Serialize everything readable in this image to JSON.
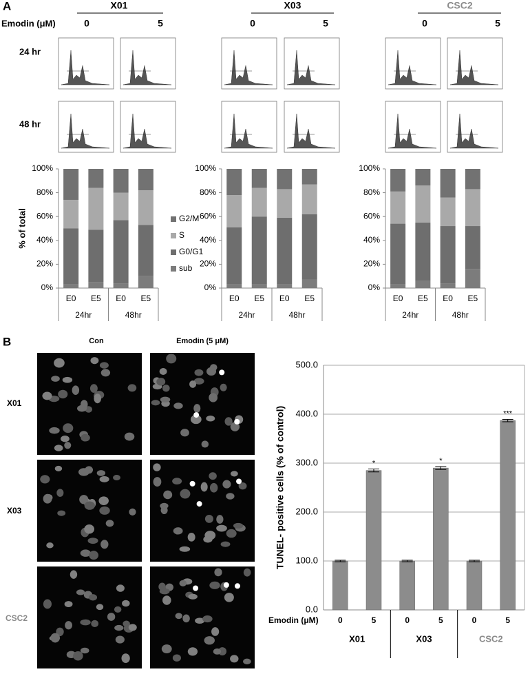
{
  "figure": {
    "panel_a": "A",
    "treatment_label": "Emodin (μM)",
    "cell_lines": [
      "X01",
      "X03",
      "CSC2"
    ],
    "doses": [
      "0",
      "5"
    ],
    "times": [
      "24 hr",
      "48 hr"
    ],
    "panel_b": "B",
    "image_columns": [
      "Con",
      "Emodin (5 μM)"
    ]
  },
  "chart_data": [
    {
      "type": "stacked_bar",
      "y_label": "% of total",
      "categories": [
        "E0",
        "E5",
        "E0",
        "E5"
      ],
      "groups": [
        "24hr",
        "48hr"
      ],
      "ylim": [
        0,
        100
      ],
      "yticks": [
        {
          "value": 0,
          "label": "0%"
        },
        {
          "value": 20,
          "label": "20%"
        },
        {
          "value": 40,
          "label": "40%"
        },
        {
          "value": 60,
          "label": "60%"
        },
        {
          "value": 80,
          "label": "80%"
        },
        {
          "value": 100,
          "label": "100%"
        }
      ],
      "legend": "right",
      "series": [
        {
          "name": "sub",
          "color": "#7c7c7c",
          "values": [
            3,
            5,
            4,
            10
          ]
        },
        {
          "name": "G0/G1",
          "color": "#6e6e6e",
          "values": [
            47,
            44,
            53,
            43
          ]
        },
        {
          "name": "S",
          "color": "#a9a9a9",
          "values": [
            24,
            35,
            23,
            29
          ]
        },
        {
          "name": "G2/M",
          "color": "#727272",
          "values": [
            26,
            16,
            20,
            18
          ]
        }
      ]
    },
    {
      "type": "stacked_bar",
      "categories": [
        "E0",
        "E5",
        "E0",
        "E5"
      ],
      "groups": [
        "24hr",
        "48hr"
      ],
      "ylim": [
        0,
        100
      ],
      "yticks": [
        {
          "value": 0,
          "label": "0%"
        },
        {
          "value": 20,
          "label": "20%"
        },
        {
          "value": 40,
          "label": "40%"
        },
        {
          "value": 60,
          "label": "60%"
        },
        {
          "value": 80,
          "label": "80%"
        },
        {
          "value": 100,
          "label": "100%"
        }
      ],
      "series": [
        {
          "color": "#7c7c7c",
          "values": [
            3,
            3,
            3,
            7
          ]
        },
        {
          "color": "#6e6e6e",
          "values": [
            48,
            57,
            56,
            55
          ]
        },
        {
          "color": "#a9a9a9",
          "values": [
            27,
            24,
            24,
            25
          ]
        },
        {
          "color": "#727272",
          "values": [
            22,
            16,
            17,
            13
          ]
        }
      ]
    },
    {
      "type": "stacked_bar",
      "categories": [
        "E0",
        "E5",
        "E0",
        "E5"
      ],
      "groups": [
        "24hr",
        "48hr"
      ],
      "ylim": [
        0,
        100
      ],
      "yticks": [
        {
          "value": 0,
          "label": "0%"
        },
        {
          "value": 20,
          "label": "20%"
        },
        {
          "value": 40,
          "label": "40%"
        },
        {
          "value": 60,
          "label": "60%"
        },
        {
          "value": 80,
          "label": "80%"
        },
        {
          "value": 100,
          "label": "100%"
        }
      ],
      "series": [
        {
          "color": "#7c7c7c",
          "values": [
            3,
            6,
            4,
            16
          ]
        },
        {
          "color": "#6e6e6e",
          "values": [
            51,
            49,
            48,
            36
          ]
        },
        {
          "color": "#a9a9a9",
          "values": [
            27,
            31,
            24,
            31
          ]
        },
        {
          "color": "#727272",
          "values": [
            19,
            14,
            24,
            17
          ]
        }
      ]
    },
    {
      "type": "bar",
      "y_label": "TUNEL- positive cells (% of control)",
      "x_label": "Emodin (μM)",
      "categories": [
        "0",
        "5",
        "0",
        "5",
        "0",
        "5"
      ],
      "groups": [
        "X01",
        "X03",
        "CSC2"
      ],
      "values": [
        100,
        285,
        100,
        290,
        100,
        387
      ],
      "errors": [
        1.5,
        3,
        1.5,
        3,
        1.5,
        2.5
      ],
      "annotations": [
        null,
        "*",
        null,
        "*",
        null,
        "***"
      ],
      "color": "#8c8c8c",
      "ylim": [
        0,
        500
      ],
      "yticks": [
        {
          "value": 0,
          "label": "0.0"
        },
        {
          "value": 100,
          "label": "100.0"
        },
        {
          "value": 200,
          "label": "200.0"
        },
        {
          "value": 300,
          "label": "300.0"
        },
        {
          "value": 400,
          "label": "400.0"
        },
        {
          "value": 500,
          "label": "500.0"
        }
      ],
      "grid": true
    }
  ]
}
